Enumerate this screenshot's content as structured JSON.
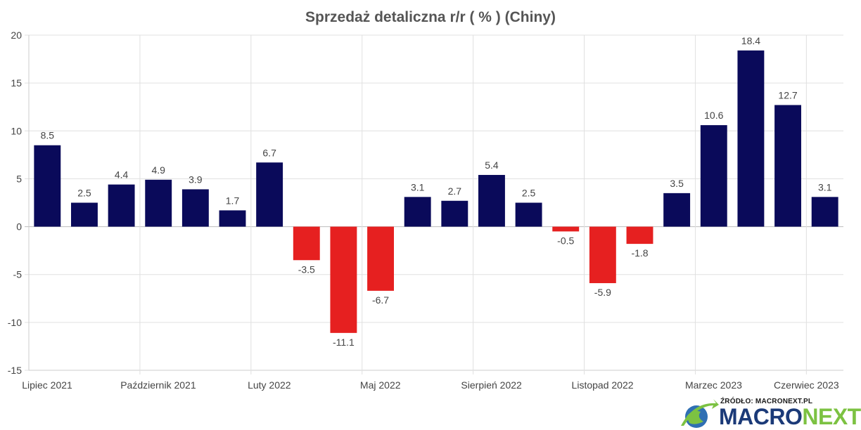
{
  "chart_data": {
    "type": "bar",
    "title": "Sprzedaż detaliczna r/r ( % ) (Chiny)",
    "categories": [
      "2021-07",
      "2021-08",
      "2021-09",
      "2021-10",
      "2021-11",
      "2021-12",
      "2022-02",
      "2022-03",
      "2022-04",
      "2022-05",
      "2022-06",
      "2022-07",
      "2022-08",
      "2022-09",
      "2022-10",
      "2022-11",
      "2022-12",
      "2023-02",
      "2023-03",
      "2023-04",
      "2023-05",
      "2023-06"
    ],
    "values": [
      8.5,
      2.5,
      4.4,
      4.9,
      3.9,
      1.7,
      6.7,
      -3.5,
      -11.1,
      -6.7,
      3.1,
      2.7,
      5.4,
      2.5,
      -0.5,
      -5.9,
      -1.8,
      3.5,
      10.6,
      18.4,
      12.7,
      3.1
    ],
    "data_labels": [
      "8.5",
      "2.5",
      "4.4",
      "4.9",
      "3.9",
      "1.7",
      "6.7",
      "-3.5",
      "-11.1",
      "-6.7",
      "3.1",
      "2.7",
      "5.4",
      "2.5",
      "-0.5",
      "-5.9",
      "-1.8",
      "3.5",
      "10.6",
      "18.4",
      "12.7",
      "3.1"
    ],
    "x_ticks": [
      "Lipiec 2021",
      "Październik 2021",
      "Luty 2022",
      "Maj 2022",
      "Sierpień 2022",
      "Listopad 2022",
      "Marzec 2023",
      "Czerwiec 2023"
    ],
    "y_ticks": [
      "20",
      "15",
      "10",
      "5",
      "0",
      "-5",
      "-10",
      "-15"
    ],
    "ylim": [
      -15,
      20
    ],
    "grid": true,
    "colors": {
      "positive": "#0a0a5a",
      "negative": "#e62020",
      "grid": "#e0e0e0"
    }
  },
  "source": {
    "label": "ŹRÓDŁO: MACRONEXT.PL",
    "brand_part1": "MACRO",
    "brand_part2": "NEXT"
  },
  "icons": {
    "logo": "macronext-globe-logo"
  }
}
